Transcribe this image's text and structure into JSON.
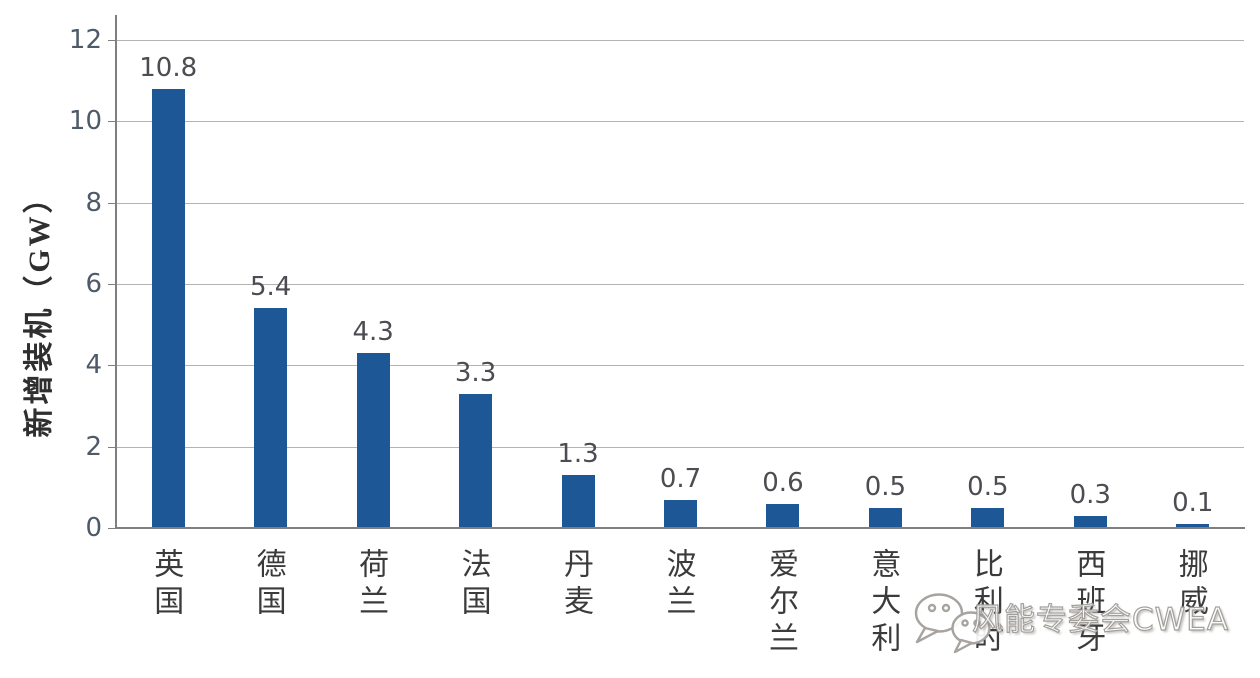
{
  "chart_data": {
    "type": "bar",
    "title": "",
    "ylabel": "新增装机（GW）",
    "xlabel": "",
    "categories": [
      "英国",
      "德国",
      "荷兰",
      "法国",
      "丹麦",
      "波兰",
      "爱尔兰",
      "意大利",
      "比利时",
      "西班牙",
      "挪威"
    ],
    "values": [
      10.8,
      5.4,
      4.3,
      3.3,
      1.3,
      0.7,
      0.6,
      0.5,
      0.5,
      0.3,
      0.1
    ],
    "value_labels": [
      "10.8",
      "5.4",
      "4.3",
      "3.3",
      "1.3",
      "0.7",
      "0.6",
      "0.5",
      "0.5",
      "0.3",
      "0.1"
    ],
    "yticks": [
      0,
      2,
      4,
      6,
      8,
      10,
      12
    ],
    "ylim": [
      0,
      12
    ],
    "grid": true,
    "legend_position": "none"
  },
  "watermark": {
    "icon": "wechat-icon",
    "text": "风能专委会CWEA"
  },
  "colors": {
    "bar": "#1e5796",
    "gridline": "#b3b3b3",
    "axis": "#7f7f7f",
    "tick_label": "#4e5a68",
    "value_label": "#4c4c52",
    "category_label": "#3b3b3b",
    "background": "#ffffff"
  }
}
